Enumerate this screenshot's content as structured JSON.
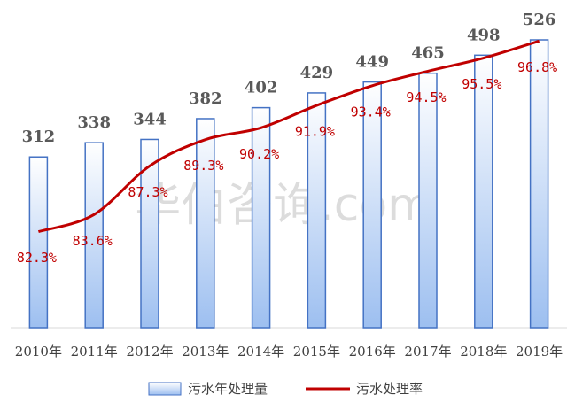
{
  "chart_data": {
    "type": "bar-line",
    "watermark": "华伯咨询.com",
    "categories": [
      "2010年",
      "2011年",
      "2012年",
      "2013年",
      "2014年",
      "2015年",
      "2016年",
      "2017年",
      "2018年",
      "2019年"
    ],
    "series": [
      {
        "name": "污水年处理量",
        "type": "bar",
        "color": "#4472c4",
        "values": [
          312,
          338,
          344,
          382,
          402,
          429,
          449,
          465,
          498,
          526
        ]
      },
      {
        "name": "污水处理率",
        "type": "line",
        "axis": "y2",
        "color": "#c00000",
        "values": [
          82.3,
          83.6,
          87.3,
          89.3,
          90.2,
          91.9,
          93.4,
          94.5,
          95.5,
          96.8
        ],
        "value_labels": [
          "82.3%",
          "83.6%",
          "87.3%",
          "89.3%",
          "90.2%",
          "91.9%",
          "93.4%",
          "94.5%",
          "95.5%",
          "96.8%"
        ]
      }
    ],
    "ylim": [
      0,
      560
    ],
    "y2lim": [
      75,
      98.3
    ]
  }
}
